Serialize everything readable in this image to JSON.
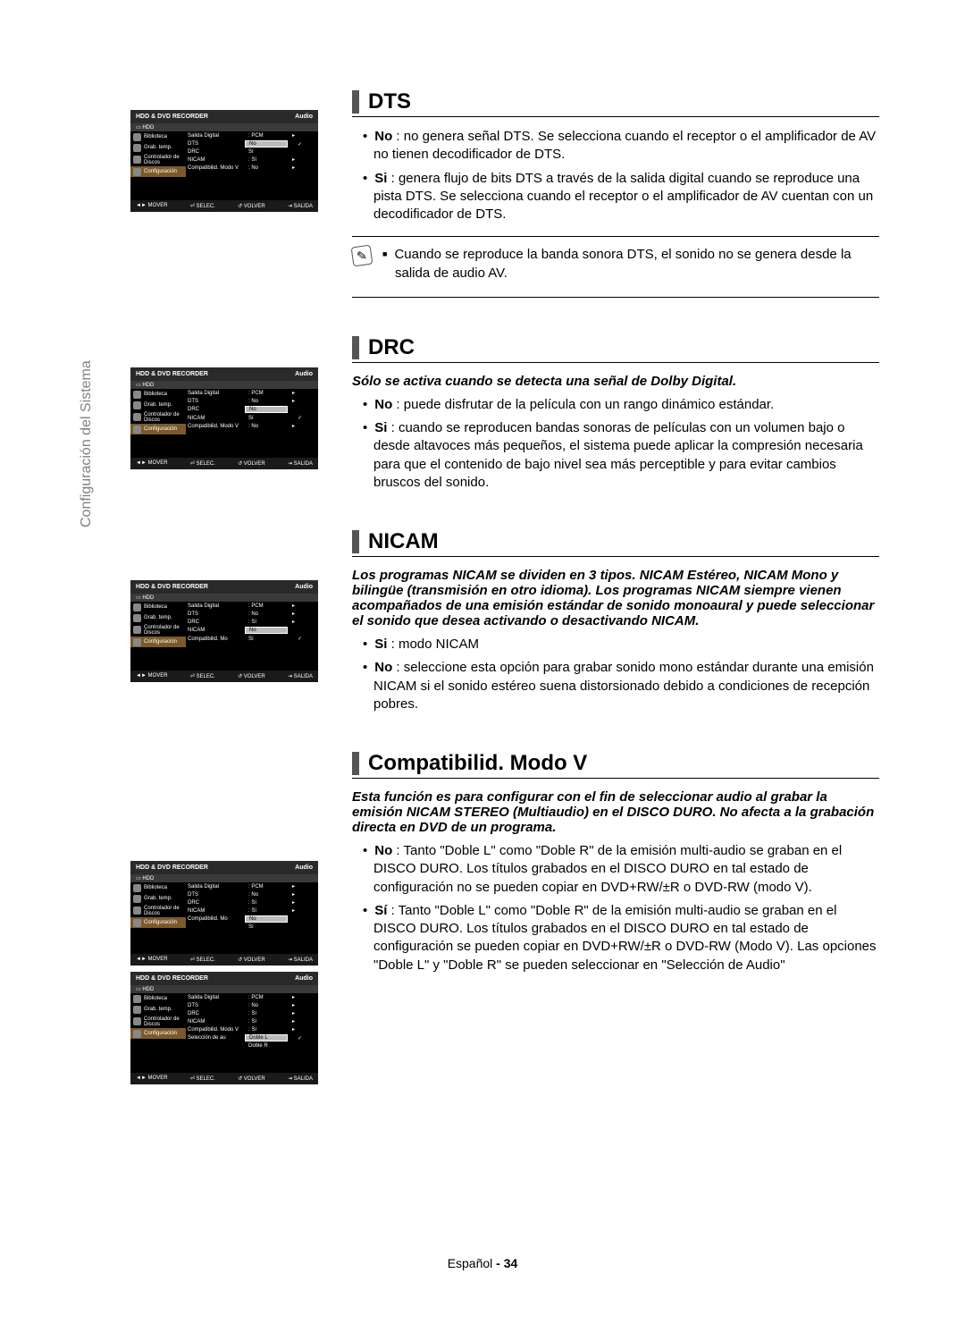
{
  "sidebar_label": "Configuración del Sistema",
  "osd": {
    "title": "HDD & DVD RECORDER",
    "category": "Audio",
    "hdd": "HDD",
    "menu": [
      {
        "label": "Biblioteca",
        "hl": false
      },
      {
        "label": "Grab. temp.",
        "hl": false
      },
      {
        "label": "Controlador de Discos",
        "hl": false
      },
      {
        "label": "Configuración",
        "hl": true
      }
    ],
    "foot": {
      "mover": "◄► MOVER",
      "selec": "⏎ SELEC.",
      "volver": "↺ VOLVER",
      "salida": "⇥ SALIDA"
    }
  },
  "panels": [
    {
      "rows": [
        {
          "k": "Salida Digital",
          "v": ": PCM",
          "arrow": true,
          "sel": false,
          "ck": false
        },
        {
          "k": "DTS",
          "v": "No",
          "arrow": false,
          "sel": true,
          "ck": true
        },
        {
          "k": "DRC",
          "v": "Sí",
          "arrow": false,
          "sel": false,
          "ck": false
        },
        {
          "k": "NICAM",
          "v": ": Sí",
          "arrow": true,
          "sel": false,
          "ck": false
        },
        {
          "k": "Compatibilid. Modo V",
          "v": ": No",
          "arrow": true,
          "sel": false,
          "ck": false
        }
      ]
    },
    {
      "rows": [
        {
          "k": "Salida Digital",
          "v": ": PCM",
          "arrow": true,
          "sel": false,
          "ck": false
        },
        {
          "k": "DTS",
          "v": ": No",
          "arrow": true,
          "sel": false,
          "ck": false
        },
        {
          "k": "DRC",
          "v": "No",
          "arrow": false,
          "sel": true,
          "ck": false
        },
        {
          "k": "NICAM",
          "v": "Sí",
          "arrow": false,
          "sel": false,
          "ck": true
        },
        {
          "k": "Compatibilid. Modo V",
          "v": ": No",
          "arrow": true,
          "sel": false,
          "ck": false
        }
      ]
    },
    {
      "rows": [
        {
          "k": "Salida Digital",
          "v": ": PCM",
          "arrow": true,
          "sel": false,
          "ck": false
        },
        {
          "k": "DTS",
          "v": ": No",
          "arrow": true,
          "sel": false,
          "ck": false
        },
        {
          "k": "DRC",
          "v": ": Sí",
          "arrow": true,
          "sel": false,
          "ck": false
        },
        {
          "k": "NICAM",
          "v": "No",
          "arrow": false,
          "sel": true,
          "ck": false
        },
        {
          "k": "Compatibilid. Mo",
          "v": "Sí",
          "arrow": false,
          "sel": false,
          "ck": true
        }
      ]
    },
    {
      "rows": [
        {
          "k": "Salida Digital",
          "v": ": PCM",
          "arrow": true,
          "sel": false,
          "ck": false
        },
        {
          "k": "DTS",
          "v": ": No",
          "arrow": true,
          "sel": false,
          "ck": false
        },
        {
          "k": "DRC",
          "v": ": Sí",
          "arrow": true,
          "sel": false,
          "ck": false
        },
        {
          "k": "NICAM",
          "v": ": Sí",
          "arrow": true,
          "sel": false,
          "ck": false
        },
        {
          "k": "Compatibilid. Mo",
          "v": "No",
          "arrow": false,
          "sel": true,
          "ck": false
        }
      ],
      "sub": [
        {
          "k": "",
          "v": "Sí",
          "ck": false
        }
      ]
    },
    {
      "rows": [
        {
          "k": "Salida Digital",
          "v": ": PCM",
          "arrow": true,
          "sel": false,
          "ck": false
        },
        {
          "k": "DTS",
          "v": ": No",
          "arrow": true,
          "sel": false,
          "ck": false
        },
        {
          "k": "DRC",
          "v": ": Sí",
          "arrow": true,
          "sel": false,
          "ck": false
        },
        {
          "k": "NICAM",
          "v": ": Sí",
          "arrow": true,
          "sel": false,
          "ck": false
        },
        {
          "k": "Compatibilid. Modo V",
          "v": ": Sí",
          "arrow": true,
          "sel": false,
          "ck": false
        },
        {
          "k": "Selección de au",
          "v": "Doble L",
          "arrow": false,
          "sel": true,
          "ck": true
        }
      ],
      "sub": [
        {
          "k": "",
          "v": "Doble R",
          "ck": false
        }
      ]
    }
  ],
  "sections": [
    {
      "title": "DTS",
      "lead": null,
      "items": [
        {
          "b": "No",
          "t": " : no genera señal DTS. Se selecciona cuando el receptor o el amplificador de AV no tienen decodificador de DTS."
        },
        {
          "b": "Si",
          "t": " : genera flujo de bits DTS a través de la salida digital cuando se reproduce una pista DTS. Se selecciona cuando el receptor o el amplificador de AV cuentan con un decodificador de DTS."
        }
      ],
      "note": [
        "Cuando se reproduce la banda sonora DTS, el sonido no se genera desde la salida de audio AV."
      ]
    },
    {
      "title": "DRC",
      "lead": "Sólo se activa cuando se detecta una señal de Dolby Digital.",
      "items": [
        {
          "b": "No",
          "t": " : puede disfrutar de la película con un rango dinámico estándar."
        },
        {
          "b": "Si",
          "t": " : cuando se reproducen bandas sonoras de películas con un volumen bajo o desde altavoces más pequeños, el sistema puede aplicar la compresión necesaria para que el contenido de bajo nivel sea más perceptible y para evitar cambios bruscos del sonido."
        }
      ],
      "note": null
    },
    {
      "title": "NICAM",
      "lead": "Los programas NICAM se dividen en 3 tipos. NICAM Estéreo, NICAM Mono y bilingüe (transmisión en otro idioma). Los programas NICAM siempre vienen acompañados de una emisión estándar de sonido monoaural y puede seleccionar el sonido que desea activando o desactivando NICAM.",
      "items": [
        {
          "b": "Si",
          "t": " : modo NICAM"
        },
        {
          "b": "No",
          "t": " : seleccione esta opción para grabar sonido mono estándar durante una emisión NICAM si el sonido estéreo suena distorsionado debido a condiciones de recepción pobres."
        }
      ],
      "note": null
    },
    {
      "title": "Compatibilid. Modo V",
      "lead": "Esta función es para configurar con el fin de seleccionar audio al grabar la emisión NICAM STEREO (Multiaudio) en el DISCO DURO. No afecta a la grabación directa en DVD de un programa.",
      "items": [
        {
          "b": "No",
          "t": " : Tanto \"Doble L\" como \"Doble R\" de la emisión multi-audio se graban en el DISCO DURO. Los títulos grabados en el DISCO DURO en tal estado de configuración no se pueden copiar en DVD+RW/±R o DVD-RW (modo V)."
        },
        {
          "b": "Sí",
          "t": " : Tanto \"Doble L\" como \"Doble R\" de la emisión multi-audio se graban en el DISCO DURO. Los títulos grabados en el DISCO DURO en tal estado de configuración se pueden copiar en DVD+RW/±R o DVD-RW (Modo V). Las opciones \"Doble L\" y \"Doble R\" se pueden seleccionar en \"Selección de Audio\""
        }
      ],
      "note": null
    }
  ],
  "footer": {
    "lang": "Español",
    "sep": " - ",
    "page": "34"
  }
}
